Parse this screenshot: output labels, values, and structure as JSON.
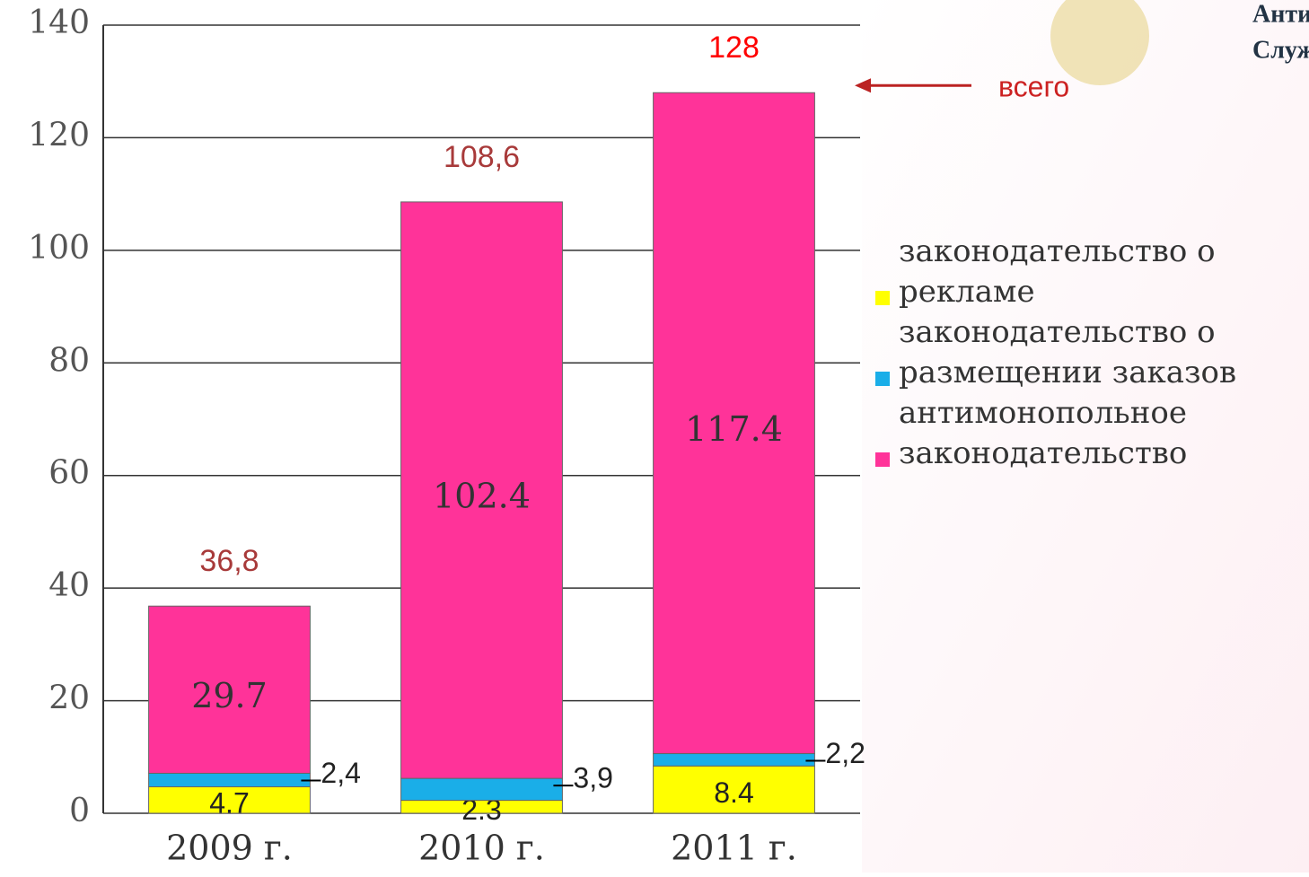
{
  "chart_data": {
    "type": "stacked_bar",
    "categories": [
      "2009 г.",
      "2010 г.",
      "2011 г."
    ],
    "series": [
      {
        "name": "законодательство о рекламе",
        "color": "#ffff00",
        "values": [
          4.7,
          2.3,
          8.4
        ],
        "value_labels": [
          "4.7",
          "2.3",
          "8.4"
        ]
      },
      {
        "name": "законодательство о размещении заказов",
        "color": "#1aaee8",
        "values": [
          2.4,
          3.9,
          2.2
        ],
        "value_labels": [
          "2,4",
          "3,9",
          "2,2"
        ]
      },
      {
        "name": "антимонопольное законодательство",
        "color": "#ff3399",
        "values": [
          29.7,
          102.4,
          117.4
        ],
        "value_labels": [
          "29.7",
          "102.4",
          "117.4"
        ]
      }
    ],
    "totals": [
      36.8,
      108.6,
      128
    ],
    "total_labels": [
      "36,8",
      "108,6",
      "128"
    ],
    "total_colors": [
      "#a83a3a",
      "#a83a3a",
      "#ff0000"
    ],
    "annotation": "всего",
    "ylim": [
      0,
      140
    ],
    "yticks": [
      0,
      20,
      40,
      60,
      80,
      100,
      120,
      140
    ],
    "grid": true
  },
  "logo_text": [
    "Анти",
    "Служ"
  ]
}
